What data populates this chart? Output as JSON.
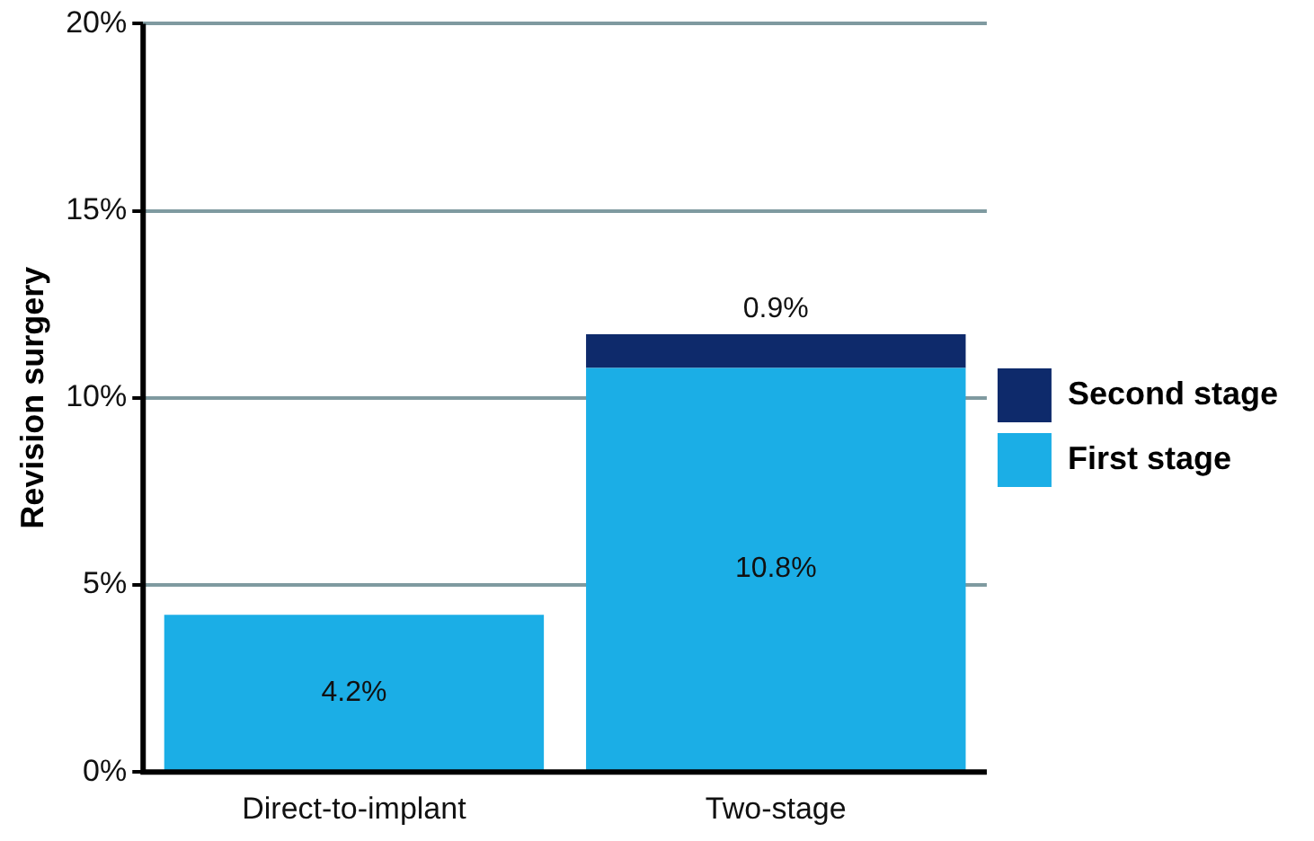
{
  "chart_data": {
    "type": "bar",
    "stacked": true,
    "ylabel": "Revision surgery",
    "categories": [
      "Direct-to-implant",
      "Two-stage"
    ],
    "series": [
      {
        "name": "First stage",
        "color": "#1baee6",
        "values": [
          4.2,
          10.8
        ],
        "value_labels": [
          "4.2%",
          "10.8%"
        ]
      },
      {
        "name": "Second stage",
        "color": "#0e2a6b",
        "values": [
          null,
          0.9
        ],
        "value_labels": [
          null,
          "0.9%"
        ]
      }
    ],
    "ylim": [
      0,
      20
    ],
    "yticks": [
      {
        "value": 0,
        "label": "0%"
      },
      {
        "value": 5,
        "label": "5%"
      },
      {
        "value": 10,
        "label": "10%"
      },
      {
        "value": 15,
        "label": "15%"
      },
      {
        "value": 20,
        "label": "20%"
      }
    ],
    "grid": "y",
    "legend": "right"
  }
}
